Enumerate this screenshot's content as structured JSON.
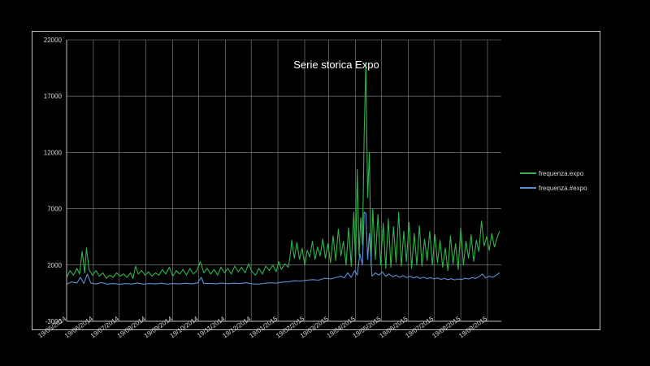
{
  "chart_data": {
    "type": "line",
    "title": "Serie storica Expo",
    "xlabel": "",
    "ylabel": "",
    "ylim": [
      0,
      22000
    ],
    "y_ticks": [
      2000,
      7000,
      12000,
      17000,
      22000
    ],
    "y_ticks_shown": [
      "2000",
      "7000",
      "12000",
      "17000",
      "22000"
    ],
    "y_bottom_label": "-3000",
    "x_ticks": [
      "19/05/2014",
      "19/06/2014",
      "19/07/2014",
      "19/08/2014",
      "19/09/2014",
      "19/10/2014",
      "19/11/2014",
      "19/12/2014",
      "19/01/2015",
      "19/02/2015",
      "19/03/2015",
      "19/04/2015",
      "19/05/2015",
      "19/06/2015",
      "19/07/2015",
      "19/08/2015",
      "19/09/2015"
    ],
    "x_start": "2014-05-19",
    "x_end": "2015-10-05",
    "grid": true,
    "legend_position": "right",
    "series": [
      {
        "name": "frequenza.expo",
        "color": "#2fb34b",
        "points": [
          [
            "2014-05-19",
            900
          ],
          [
            "2014-05-23",
            1500
          ],
          [
            "2014-05-27",
            1100
          ],
          [
            "2014-05-31",
            1700
          ],
          [
            "2014-06-03",
            1200
          ],
          [
            "2014-06-06",
            3200
          ],
          [
            "2014-06-09",
            1300
          ],
          [
            "2014-06-11",
            3500
          ],
          [
            "2014-06-14",
            1600
          ],
          [
            "2014-06-18",
            1100
          ],
          [
            "2014-06-22",
            1500
          ],
          [
            "2014-06-26",
            1000
          ],
          [
            "2014-06-30",
            1300
          ],
          [
            "2014-07-04",
            800
          ],
          [
            "2014-07-08",
            1100
          ],
          [
            "2014-07-12",
            900
          ],
          [
            "2014-07-16",
            1300
          ],
          [
            "2014-07-20",
            1000
          ],
          [
            "2014-07-24",
            1200
          ],
          [
            "2014-07-28",
            900
          ],
          [
            "2014-08-01",
            1300
          ],
          [
            "2014-08-04",
            800
          ],
          [
            "2014-08-07",
            1900
          ],
          [
            "2014-08-10",
            1200
          ],
          [
            "2014-08-14",
            1500
          ],
          [
            "2014-08-18",
            1100
          ],
          [
            "2014-08-22",
            1400
          ],
          [
            "2014-08-26",
            1000
          ],
          [
            "2014-08-30",
            1300
          ],
          [
            "2014-09-03",
            1100
          ],
          [
            "2014-09-07",
            1600
          ],
          [
            "2014-09-11",
            1200
          ],
          [
            "2014-09-15",
            1800
          ],
          [
            "2014-09-19",
            1000
          ],
          [
            "2014-09-23",
            1500
          ],
          [
            "2014-09-27",
            1200
          ],
          [
            "2014-10-01",
            1600
          ],
          [
            "2014-10-05",
            1100
          ],
          [
            "2014-10-09",
            1700
          ],
          [
            "2014-10-13",
            1200
          ],
          [
            "2014-10-17",
            1500
          ],
          [
            "2014-10-21",
            2300
          ],
          [
            "2014-10-25",
            1300
          ],
          [
            "2014-10-29",
            1700
          ],
          [
            "2014-11-02",
            1200
          ],
          [
            "2014-11-06",
            1600
          ],
          [
            "2014-11-10",
            1100
          ],
          [
            "2014-11-14",
            1800
          ],
          [
            "2014-11-18",
            1300
          ],
          [
            "2014-11-22",
            1700
          ],
          [
            "2014-11-26",
            1200
          ],
          [
            "2014-11-30",
            1900
          ],
          [
            "2014-12-04",
            1400
          ],
          [
            "2014-12-08",
            1800
          ],
          [
            "2014-12-12",
            1300
          ],
          [
            "2014-12-16",
            2100
          ],
          [
            "2014-12-20",
            1400
          ],
          [
            "2014-12-24",
            1100
          ],
          [
            "2014-12-28",
            1700
          ],
          [
            "2015-01-01",
            1200
          ],
          [
            "2015-01-05",
            1900
          ],
          [
            "2015-01-09",
            1500
          ],
          [
            "2015-01-13",
            2000
          ],
          [
            "2015-01-17",
            1400
          ],
          [
            "2015-01-20",
            2300
          ],
          [
            "2015-01-23",
            1600
          ],
          [
            "2015-01-27",
            2100
          ],
          [
            "2015-01-31",
            1800
          ],
          [
            "2015-02-02",
            2700
          ],
          [
            "2015-02-04",
            4200
          ],
          [
            "2015-02-07",
            2600
          ],
          [
            "2015-02-10",
            4000
          ],
          [
            "2015-02-13",
            2500
          ],
          [
            "2015-02-16",
            3500
          ],
          [
            "2015-02-19",
            2000
          ],
          [
            "2015-02-22",
            3300
          ],
          [
            "2015-02-25",
            2700
          ],
          [
            "2015-02-28",
            4100
          ],
          [
            "2015-03-03",
            2500
          ],
          [
            "2015-03-06",
            3600
          ],
          [
            "2015-03-09",
            2800
          ],
          [
            "2015-03-12",
            4300
          ],
          [
            "2015-03-15",
            2600
          ],
          [
            "2015-03-18",
            3900
          ],
          [
            "2015-03-21",
            2200
          ],
          [
            "2015-03-24",
            4600
          ],
          [
            "2015-03-27",
            2400
          ],
          [
            "2015-03-30",
            5200
          ],
          [
            "2015-04-02",
            2800
          ],
          [
            "2015-04-05",
            4100
          ],
          [
            "2015-04-08",
            2000
          ],
          [
            "2015-04-11",
            5300
          ],
          [
            "2015-04-14",
            1900
          ],
          [
            "2015-04-17",
            6700
          ],
          [
            "2015-04-19",
            2100
          ],
          [
            "2015-04-21",
            10500
          ],
          [
            "2015-04-23",
            2900
          ],
          [
            "2015-04-25",
            6200
          ],
          [
            "2015-04-27",
            3800
          ],
          [
            "2015-04-29",
            13500
          ],
          [
            "2015-05-01",
            20000
          ],
          [
            "2015-05-03",
            8000
          ],
          [
            "2015-05-05",
            12000
          ],
          [
            "2015-05-07",
            2000
          ],
          [
            "2015-05-09",
            7000
          ],
          [
            "2015-05-12",
            2500
          ],
          [
            "2015-05-15",
            6500
          ],
          [
            "2015-05-18",
            2000
          ],
          [
            "2015-05-21",
            5700
          ],
          [
            "2015-05-24",
            1700
          ],
          [
            "2015-05-27",
            6100
          ],
          [
            "2015-05-30",
            1800
          ],
          [
            "2015-06-02",
            5400
          ],
          [
            "2015-06-05",
            2200
          ],
          [
            "2015-06-08",
            6700
          ],
          [
            "2015-06-11",
            1900
          ],
          [
            "2015-06-14",
            5000
          ],
          [
            "2015-06-17",
            2300
          ],
          [
            "2015-06-20",
            5800
          ],
          [
            "2015-06-23",
            1700
          ],
          [
            "2015-06-26",
            4800
          ],
          [
            "2015-06-29",
            2000
          ],
          [
            "2015-07-02",
            5500
          ],
          [
            "2015-07-05",
            1900
          ],
          [
            "2015-07-08",
            4300
          ],
          [
            "2015-07-11",
            2400
          ],
          [
            "2015-07-14",
            5000
          ],
          [
            "2015-07-17",
            2000
          ],
          [
            "2015-07-20",
            4700
          ],
          [
            "2015-07-23",
            2200
          ],
          [
            "2015-07-26",
            4200
          ],
          [
            "2015-07-29",
            1800
          ],
          [
            "2015-08-01",
            3500
          ],
          [
            "2015-08-04",
            1500
          ],
          [
            "2015-08-07",
            4600
          ],
          [
            "2015-08-10",
            2100
          ],
          [
            "2015-08-13",
            3900
          ],
          [
            "2015-08-16",
            1600
          ],
          [
            "2015-08-19",
            5300
          ],
          [
            "2015-08-22",
            2000
          ],
          [
            "2015-08-25",
            4100
          ],
          [
            "2015-08-28",
            2600
          ],
          [
            "2015-08-31",
            4700
          ],
          [
            "2015-09-03",
            2300
          ],
          [
            "2015-09-06",
            4200
          ],
          [
            "2015-09-09",
            3200
          ],
          [
            "2015-09-12",
            5900
          ],
          [
            "2015-09-15",
            3700
          ],
          [
            "2015-09-18",
            4500
          ],
          [
            "2015-09-21",
            3300
          ],
          [
            "2015-09-24",
            4800
          ],
          [
            "2015-09-27",
            3600
          ],
          [
            "2015-09-30",
            4400
          ],
          [
            "2015-10-03",
            5000
          ]
        ]
      },
      {
        "name": "frequenza.#expo",
        "color": "#5b8fd6",
        "points": [
          [
            "2014-05-19",
            300
          ],
          [
            "2014-05-25",
            500
          ],
          [
            "2014-05-31",
            400
          ],
          [
            "2014-06-04",
            900
          ],
          [
            "2014-06-08",
            350
          ],
          [
            "2014-06-12",
            1200
          ],
          [
            "2014-06-16",
            400
          ],
          [
            "2014-06-22",
            300
          ],
          [
            "2014-06-28",
            450
          ],
          [
            "2014-07-05",
            300
          ],
          [
            "2014-07-12",
            350
          ],
          [
            "2014-07-19",
            280
          ],
          [
            "2014-07-26",
            350
          ],
          [
            "2014-08-02",
            300
          ],
          [
            "2014-08-09",
            400
          ],
          [
            "2014-08-16",
            300
          ],
          [
            "2014-08-23",
            350
          ],
          [
            "2014-08-30",
            320
          ],
          [
            "2014-09-06",
            380
          ],
          [
            "2014-09-13",
            300
          ],
          [
            "2014-09-20",
            350
          ],
          [
            "2014-09-27",
            320
          ],
          [
            "2014-10-04",
            380
          ],
          [
            "2014-10-11",
            330
          ],
          [
            "2014-10-18",
            400
          ],
          [
            "2014-10-22",
            900
          ],
          [
            "2014-10-25",
            350
          ],
          [
            "2014-11-01",
            370
          ],
          [
            "2014-11-08",
            330
          ],
          [
            "2014-11-15",
            390
          ],
          [
            "2014-11-22",
            340
          ],
          [
            "2014-11-29",
            380
          ],
          [
            "2014-12-06",
            350
          ],
          [
            "2014-12-13",
            420
          ],
          [
            "2014-12-20",
            330
          ],
          [
            "2014-12-27",
            300
          ],
          [
            "2015-01-03",
            360
          ],
          [
            "2015-01-10",
            420
          ],
          [
            "2015-01-17",
            380
          ],
          [
            "2015-01-24",
            480
          ],
          [
            "2015-01-31",
            500
          ],
          [
            "2015-02-07",
            600
          ],
          [
            "2015-02-14",
            580
          ],
          [
            "2015-02-21",
            640
          ],
          [
            "2015-02-28",
            700
          ],
          [
            "2015-03-07",
            650
          ],
          [
            "2015-03-14",
            820
          ],
          [
            "2015-03-21",
            760
          ],
          [
            "2015-03-28",
            900
          ],
          [
            "2015-04-02",
            1000
          ],
          [
            "2015-04-06",
            850
          ],
          [
            "2015-04-10",
            1300
          ],
          [
            "2015-04-14",
            900
          ],
          [
            "2015-04-18",
            1500
          ],
          [
            "2015-04-21",
            1100
          ],
          [
            "2015-04-24",
            3000
          ],
          [
            "2015-04-27",
            2000
          ],
          [
            "2015-04-29",
            6700
          ],
          [
            "2015-05-01",
            6600
          ],
          [
            "2015-05-03",
            2500
          ],
          [
            "2015-05-05",
            4800
          ],
          [
            "2015-05-08",
            1000
          ],
          [
            "2015-05-12",
            1300
          ],
          [
            "2015-05-16",
            1100
          ],
          [
            "2015-05-20",
            1400
          ],
          [
            "2015-05-24",
            1000
          ],
          [
            "2015-05-28",
            1200
          ],
          [
            "2015-06-01",
            950
          ],
          [
            "2015-06-05",
            1100
          ],
          [
            "2015-06-09",
            900
          ],
          [
            "2015-06-13",
            1050
          ],
          [
            "2015-06-17",
            880
          ],
          [
            "2015-06-21",
            1000
          ],
          [
            "2015-06-25",
            850
          ],
          [
            "2015-06-29",
            950
          ],
          [
            "2015-07-03",
            800
          ],
          [
            "2015-07-07",
            920
          ],
          [
            "2015-07-11",
            780
          ],
          [
            "2015-07-15",
            880
          ],
          [
            "2015-07-19",
            760
          ],
          [
            "2015-07-23",
            850
          ],
          [
            "2015-07-27",
            720
          ],
          [
            "2015-07-31",
            800
          ],
          [
            "2015-08-04",
            700
          ],
          [
            "2015-08-08",
            780
          ],
          [
            "2015-08-12",
            680
          ],
          [
            "2015-08-16",
            760
          ],
          [
            "2015-08-20",
            700
          ],
          [
            "2015-08-24",
            820
          ],
          [
            "2015-08-28",
            760
          ],
          [
            "2015-09-01",
            880
          ],
          [
            "2015-09-05",
            800
          ],
          [
            "2015-09-09",
            950
          ],
          [
            "2015-09-13",
            1200
          ],
          [
            "2015-09-17",
            850
          ],
          [
            "2015-09-21",
            1000
          ],
          [
            "2015-09-25",
            900
          ],
          [
            "2015-09-29",
            1100
          ],
          [
            "2015-10-03",
            1300
          ]
        ]
      }
    ]
  }
}
